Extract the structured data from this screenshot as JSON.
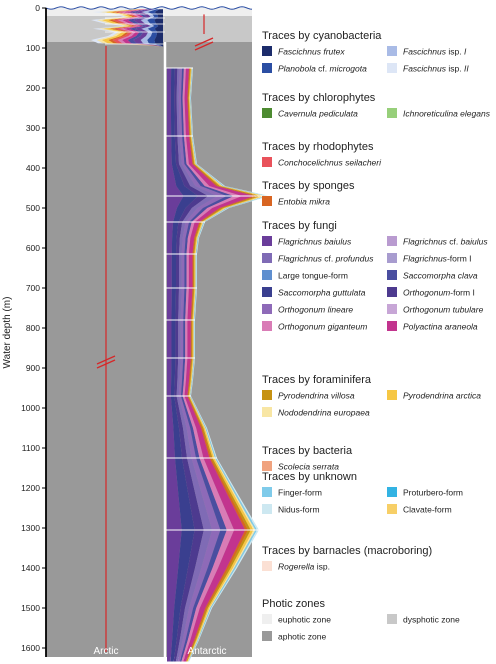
{
  "chart_data": {
    "type": "area",
    "ylabel": "Water depth (m)",
    "ylim": [
      0,
      1640
    ],
    "y_ticks": [
      0,
      100,
      200,
      300,
      400,
      500,
      600,
      700,
      800,
      900,
      1000,
      1100,
      1200,
      1300,
      1400,
      1500,
      1600
    ],
    "grid": false,
    "legend_position": "right",
    "panels": [
      {
        "label": "Arctic",
        "depth_range": [
          0,
          1600
        ],
        "axis_break_depths": [
          85,
          880
        ]
      },
      {
        "label": "Antarctic",
        "depth_range": [
          150,
          1640
        ],
        "axis_break_depths": [
          85
        ]
      }
    ],
    "sample_depths": {
      "Arctic": [
        15,
        25,
        40,
        60,
        90
      ],
      "Antarctic": [
        150,
        320,
        470,
        535,
        615,
        700,
        780,
        875,
        970,
        1125,
        1305,
        1635
      ]
    },
    "photic_zones": [
      {
        "name": "euphotic zone",
        "color": "#efefef",
        "depth_range": [
          0,
          20
        ]
      },
      {
        "name": "dysphotic zone",
        "color": "#c8c8c8",
        "depth_range": [
          20,
          85
        ]
      },
      {
        "name": "aphotic zone",
        "color": "#999999",
        "depth_range": [
          85,
          1640
        ]
      }
    ],
    "legend_groups": [
      {
        "title": "Traces by cyanobacteria",
        "items": [
          {
            "name": "Fascichnus frutex",
            "color": "#1c2c6b",
            "italic": true
          },
          {
            "name": "Fascichnus isp. I",
            "color": "#a9bbe6",
            "italic": true,
            "roman": " isp. I",
            "main": "Fascichnus"
          },
          {
            "name": "Planobola cf. microgota",
            "color": "#2b4ea3",
            "italic": true
          },
          {
            "name": "Fascichnus isp. II",
            "color": "#dde6f6",
            "italic": true
          }
        ]
      },
      {
        "title": "Traces by chlorophytes",
        "items": [
          {
            "name": "Cavernula pediculata",
            "color": "#4d8b31",
            "italic": true
          },
          {
            "name": "Ichnoreticulina elegans",
            "color": "#97cf7a",
            "italic": true
          }
        ]
      },
      {
        "title": "Traces by rhodophytes",
        "items": [
          {
            "name": "Conchocelichnus seilacheri",
            "color": "#e9525b",
            "italic": true
          }
        ]
      },
      {
        "title": "Traces by sponges",
        "items": [
          {
            "name": "Entobia mikra",
            "color": "#d86522",
            "italic": true
          }
        ]
      },
      {
        "title": "Traces by fungi",
        "items": [
          {
            "name": "Flagrichnus baiulus",
            "color": "#6a3d9a",
            "italic": true
          },
          {
            "name": "Flagrichnus cf. baiulus",
            "color": "#b99bd0",
            "italic": true
          },
          {
            "name": "Flagrichnus cf. profundus",
            "color": "#7f6bb5",
            "italic": true
          },
          {
            "name": "Flagrichnus-form I",
            "color": "#a89ccf",
            "italic": true
          },
          {
            "name": "Large tongue-form",
            "color": "#5f8fcf",
            "italic": false
          },
          {
            "name": "Saccomorpha clava",
            "color": "#4a4ea0",
            "italic": true
          },
          {
            "name": "Saccomorpha guttulata",
            "color": "#3a3f8f",
            "italic": true
          },
          {
            "name": "Orthogonum-form I",
            "color": "#4d3a8f",
            "italic": true
          },
          {
            "name": "Orthogonum lineare",
            "color": "#8e6ab8",
            "italic": true
          },
          {
            "name": "Orthogonum tubulare",
            "color": "#c7a6d6",
            "italic": true
          },
          {
            "name": "Orthogonum giganteum",
            "color": "#d97cb6",
            "italic": true
          },
          {
            "name": "Polyactina araneola",
            "color": "#c2348e",
            "italic": true
          }
        ]
      },
      {
        "title": "Traces by foraminifera",
        "items": [
          {
            "name": "Pyrodendrina villosa",
            "color": "#c69212",
            "italic": true
          },
          {
            "name": "Pyrodendrina arctica",
            "color": "#f6c744",
            "italic": true
          },
          {
            "name": "Nododendrina europaea",
            "color": "#f8e6a4",
            "italic": true
          }
        ]
      },
      {
        "title": "Traces by bacteria",
        "items": [
          {
            "name": "Scolecia serrata",
            "color": "#f0a37f",
            "italic": true
          }
        ]
      },
      {
        "title": "Traces by unknown",
        "items": [
          {
            "name": "Finger-form",
            "color": "#7fcbea",
            "italic": false
          },
          {
            "name": "Proturbero-form",
            "color": "#33b3e3",
            "italic": false
          },
          {
            "name": "Nidus-form",
            "color": "#cde8f1",
            "italic": false
          },
          {
            "name": "Clavate-form",
            "color": "#f7cf67",
            "italic": false
          }
        ]
      },
      {
        "title": "Traces by barnacles (macroboring)",
        "items": [
          {
            "name": "Rogerella isp.",
            "color": "#fbe0d4",
            "italic": true
          }
        ]
      },
      {
        "title": "Photic zones",
        "items": [
          {
            "name": "euphotic zone",
            "color": "#efefef",
            "italic": false
          },
          {
            "name": "dysphotic zone",
            "color": "#c8c8c8",
            "italic": false
          },
          {
            "name": "aphotic zone",
            "color": "#999999",
            "italic": false
          }
        ]
      }
    ]
  }
}
